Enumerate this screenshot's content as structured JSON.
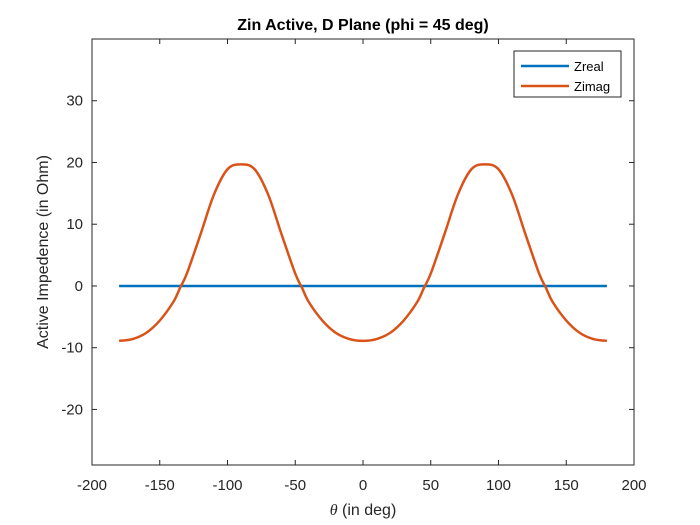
{
  "chart_data": {
    "type": "line",
    "title": "Zin Active, D Plane (phi = 45 deg)",
    "xlabel_symbol": "θ",
    "xlabel_rest": " (in deg)",
    "ylabel": "Active Impedence (in Ohm)",
    "xlim": [
      -200,
      200
    ],
    "ylim": [
      -29,
      40
    ],
    "xticks": [
      -200,
      -150,
      -100,
      -50,
      0,
      50,
      100,
      150,
      200
    ],
    "xtick_labels": [
      "-200",
      "-150",
      "-100",
      "-50",
      "0",
      "50",
      "100",
      "150",
      "200"
    ],
    "yticks": [
      -20,
      -10,
      0,
      10,
      20,
      30
    ],
    "ytick_labels": [
      "-20",
      "-10",
      "0",
      "10",
      "20",
      "30"
    ],
    "grid": false,
    "legend_position": "top-right",
    "series": [
      {
        "name": "Zreal",
        "color": "#0072BD",
        "x": [
          -180,
          180
        ],
        "y": [
          0,
          0
        ]
      },
      {
        "name": "Zimag",
        "color": "#D95319",
        "x": [
          -180,
          -170,
          -160,
          -150,
          -140,
          -135,
          -130,
          -120,
          -110,
          -100,
          -90,
          -80,
          -70,
          -60,
          -50,
          -45,
          -40,
          -30,
          -20,
          -10,
          0,
          10,
          20,
          30,
          40,
          45,
          50,
          60,
          70,
          80,
          90,
          100,
          110,
          120,
          130,
          135,
          140,
          150,
          160,
          170,
          180
        ],
        "y": [
          -8.9,
          -8.6,
          -7.6,
          -5.6,
          -2.6,
          -0.3,
          2.0,
          8.3,
          14.8,
          18.9,
          19.7,
          18.9,
          14.8,
          8.3,
          2.0,
          -0.3,
          -2.6,
          -5.6,
          -7.6,
          -8.6,
          -8.9,
          -8.6,
          -7.6,
          -5.6,
          -2.6,
          -0.3,
          2.0,
          8.3,
          14.8,
          18.9,
          19.7,
          18.9,
          14.8,
          8.3,
          2.0,
          -0.3,
          -2.6,
          -5.6,
          -7.6,
          -8.6,
          -8.9
        ]
      }
    ]
  }
}
